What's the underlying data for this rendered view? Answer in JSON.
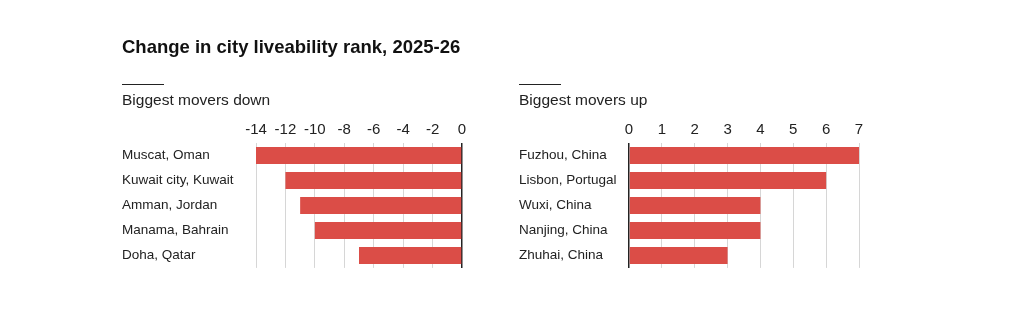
{
  "chart_data": [
    {
      "type": "bar",
      "orientation": "horizontal",
      "title": "Change in city liveability rank, 2025-26",
      "subtitle": "Biggest movers down",
      "categories": [
        "Muscat, Oman",
        "Kuwait city, Kuwait",
        "Amman, Jordan",
        "Manama, Bahrain",
        "Doha, Qatar"
      ],
      "values": [
        -14,
        -12,
        -11,
        -10,
        -7
      ],
      "color": "#db4d47",
      "xlim": [
        -14,
        0
      ],
      "xticks": [
        -14,
        -12,
        -10,
        -8,
        -6,
        -4,
        -2,
        0
      ],
      "grid": "x",
      "legend": false
    },
    {
      "type": "bar",
      "orientation": "horizontal",
      "subtitle": "Biggest movers up",
      "categories": [
        "Fuzhou, China",
        "Lisbon, Portugal",
        "Wuxi, China",
        "Nanjing, China",
        "Zhuhai, China"
      ],
      "values": [
        7,
        6,
        4,
        4,
        3
      ],
      "color": "#db4d47",
      "xlim": [
        0,
        7
      ],
      "xticks": [
        0,
        1,
        2,
        3,
        4,
        5,
        6,
        7
      ],
      "grid": "x",
      "legend": false
    }
  ]
}
